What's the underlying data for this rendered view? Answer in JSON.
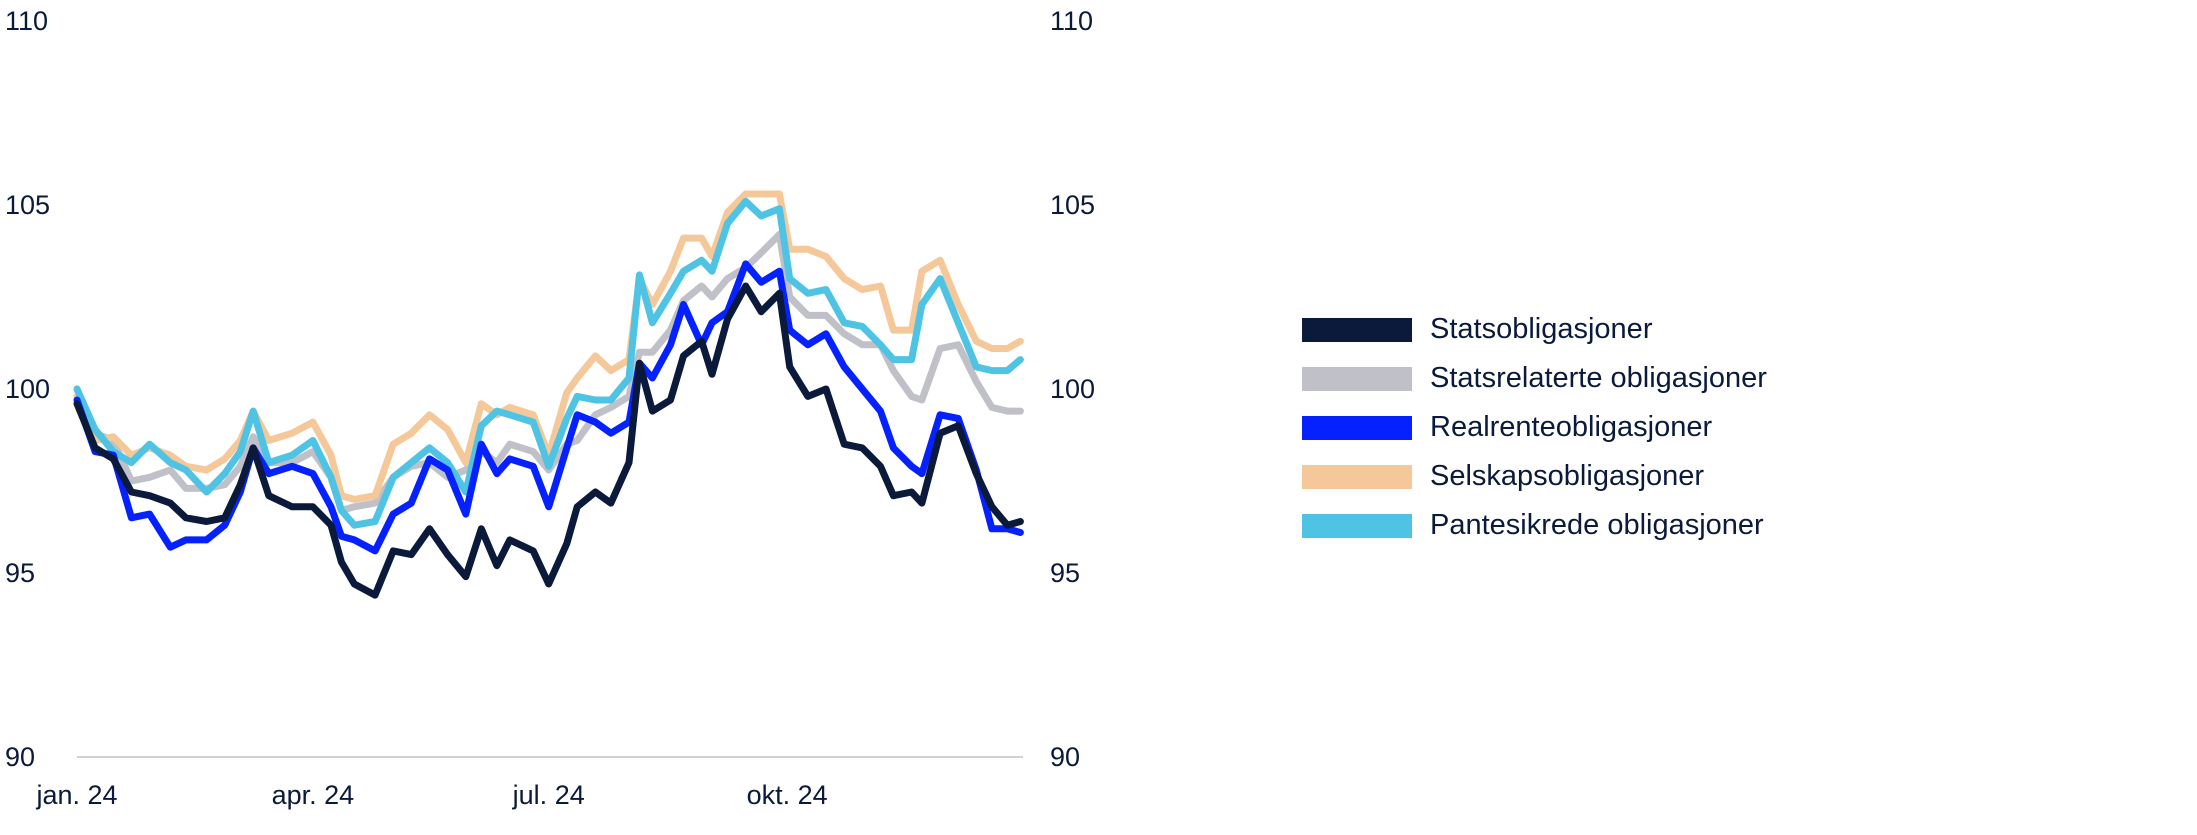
{
  "chart_data": {
    "type": "line",
    "title": "",
    "xlabel": "",
    "ylabel": "",
    "x_unit": "day of year 2024",
    "xlim": [
      0,
      365
    ],
    "ylim": [
      90,
      110
    ],
    "y_ticks": [
      "110",
      "105",
      "100",
      "95",
      "90"
    ],
    "y_tick_values": [
      110,
      105,
      100,
      95,
      90
    ],
    "x_ticks": [
      {
        "label": "jan. 24",
        "day": 0
      },
      {
        "label": "apr. 24",
        "day": 91
      },
      {
        "label": "jul. 24",
        "day": 182
      },
      {
        "label": "okt. 24",
        "day": 274
      }
    ],
    "grid": false,
    "legend_position": "right",
    "x": [
      0,
      7,
      14,
      21,
      28,
      36,
      42,
      50,
      57,
      63,
      68,
      74,
      83,
      91,
      98,
      102,
      107,
      115,
      122,
      129,
      136,
      143,
      150,
      156,
      162,
      167,
      176,
      182,
      189,
      193,
      200,
      206,
      213,
      217,
      222,
      229,
      234,
      241,
      245,
      251,
      258,
      264,
      271,
      275,
      282,
      289,
      296,
      303,
      310,
      315,
      322,
      326,
      333,
      340,
      347,
      353,
      359,
      364
    ],
    "series": [
      {
        "name": "Statsrelaterte obligasjoner",
        "color": "#c0c1c8",
        "values": [
          100.0,
          98.8,
          98.6,
          97.5,
          97.6,
          97.8,
          97.3,
          97.3,
          97.4,
          97.9,
          98.7,
          98.0,
          98.0,
          98.3,
          97.6,
          96.7,
          96.8,
          96.9,
          97.6,
          97.9,
          98.0,
          97.6,
          97.8,
          98.3,
          98.0,
          98.5,
          98.3,
          97.8,
          98.5,
          98.6,
          99.3,
          99.5,
          99.8,
          101.0,
          101.0,
          101.6,
          102.4,
          102.8,
          102.5,
          103.0,
          103.3,
          103.7,
          104.2,
          102.5,
          102.0,
          102.0,
          101.5,
          101.2,
          101.2,
          100.5,
          99.8,
          99.7,
          101.1,
          101.2,
          100.2,
          99.5,
          99.4,
          99.4
        ]
      },
      {
        "name": "Selskapsobligasjoner",
        "color": "#f5c89a",
        "values": [
          99.8,
          98.6,
          98.7,
          98.2,
          98.4,
          98.2,
          97.9,
          97.8,
          98.1,
          98.6,
          99.4,
          98.6,
          98.8,
          99.1,
          98.2,
          97.1,
          97.0,
          97.1,
          98.5,
          98.8,
          99.3,
          98.9,
          98.0,
          99.6,
          99.3,
          99.5,
          99.3,
          98.2,
          99.9,
          100.3,
          100.9,
          100.5,
          100.8,
          103.0,
          102.3,
          103.2,
          104.1,
          104.1,
          103.6,
          104.8,
          105.3,
          105.3,
          105.3,
          103.8,
          103.8,
          103.6,
          103.0,
          102.7,
          102.8,
          101.6,
          101.6,
          103.2,
          103.5,
          102.3,
          101.3,
          101.1,
          101.1,
          101.3
        ]
      },
      {
        "name": "Pantesikrede obligasjoner",
        "color": "#4fc3e3",
        "values": [
          100.0,
          98.9,
          98.3,
          98.0,
          98.5,
          98.0,
          97.8,
          97.2,
          97.7,
          98.3,
          99.4,
          98.0,
          98.2,
          98.6,
          97.6,
          96.7,
          96.3,
          96.4,
          97.6,
          98.0,
          98.4,
          98.0,
          97.2,
          99.0,
          99.4,
          99.3,
          99.1,
          97.9,
          99.2,
          99.8,
          99.7,
          99.7,
          100.3,
          103.1,
          101.8,
          102.6,
          103.2,
          103.5,
          103.2,
          104.5,
          105.1,
          104.7,
          104.9,
          103.0,
          102.6,
          102.7,
          101.8,
          101.7,
          101.2,
          100.8,
          100.8,
          102.3,
          103.0,
          101.8,
          100.6,
          100.5,
          100.5,
          100.8
        ]
      },
      {
        "name": "Realrenteobligasjoner",
        "color": "#0521ff",
        "values": [
          99.7,
          98.3,
          98.2,
          96.5,
          96.6,
          95.7,
          95.9,
          95.9,
          96.3,
          97.2,
          98.4,
          97.7,
          97.9,
          97.7,
          96.8,
          96.0,
          95.9,
          95.6,
          96.6,
          96.9,
          98.1,
          97.8,
          96.6,
          98.5,
          97.7,
          98.1,
          97.9,
          96.8,
          98.4,
          99.3,
          99.1,
          98.8,
          99.1,
          100.7,
          100.3,
          101.2,
          102.3,
          101.2,
          101.8,
          102.1,
          103.4,
          102.9,
          103.2,
          101.6,
          101.2,
          101.5,
          100.6,
          100.0,
          99.4,
          98.4,
          97.9,
          97.7,
          99.3,
          99.2,
          97.8,
          96.2,
          96.2,
          96.1
        ]
      },
      {
        "name": "Statsobligasjoner",
        "color": "#0b1a3a",
        "values": [
          99.6,
          98.4,
          98.1,
          97.2,
          97.1,
          96.9,
          96.5,
          96.4,
          96.5,
          97.4,
          98.4,
          97.1,
          96.8,
          96.8,
          96.3,
          95.3,
          94.7,
          94.4,
          95.6,
          95.5,
          96.2,
          95.5,
          94.9,
          96.2,
          95.2,
          95.9,
          95.6,
          94.7,
          95.8,
          96.8,
          97.2,
          96.9,
          98.0,
          100.7,
          99.4,
          99.7,
          100.9,
          101.3,
          100.4,
          101.9,
          102.8,
          102.1,
          102.6,
          100.6,
          99.8,
          100.0,
          98.5,
          98.4,
          97.9,
          97.1,
          97.2,
          96.9,
          98.8,
          99.0,
          97.7,
          96.8,
          96.3,
          96.4
        ]
      }
    ],
    "legend": [
      {
        "label": "Statsobligasjoner",
        "color": "#0b1a3a"
      },
      {
        "label": "Statsrelaterte obligasjoner",
        "color": "#c0c1c8"
      },
      {
        "label": "Realrenteobligasjoner",
        "color": "#0521ff"
      },
      {
        "label": "Selskapsobligasjoner",
        "color": "#f5c89a"
      },
      {
        "label": "Pantesikrede obligasjoner",
        "color": "#4fc3e3"
      }
    ]
  }
}
